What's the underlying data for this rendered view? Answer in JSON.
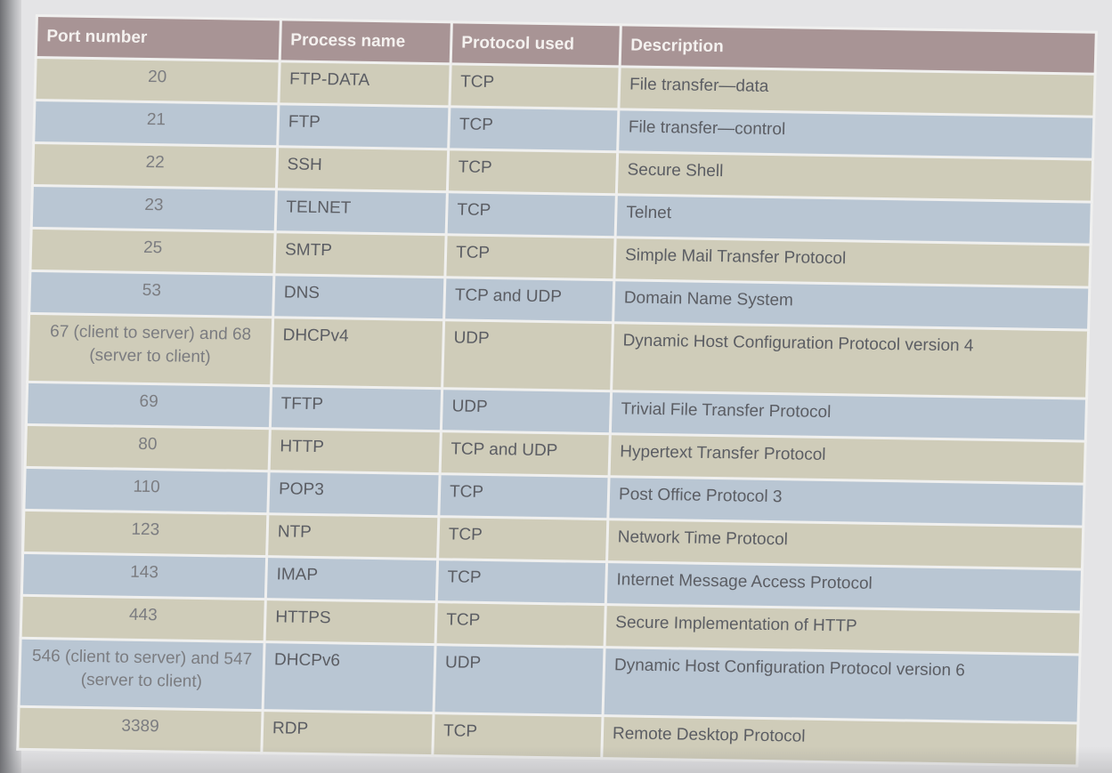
{
  "table": {
    "headers": [
      "Port number",
      "Process name",
      "Protocol used",
      "Description"
    ],
    "rows": [
      {
        "port": "20",
        "process": "FTP-DATA",
        "protocol": "TCP",
        "description": "File transfer—data"
      },
      {
        "port": "21",
        "process": "FTP",
        "protocol": "TCP",
        "description": "File transfer—control"
      },
      {
        "port": "22",
        "process": "SSH",
        "protocol": "TCP",
        "description": "Secure Shell"
      },
      {
        "port": "23",
        "process": "TELNET",
        "protocol": "TCP",
        "description": "Telnet"
      },
      {
        "port": "25",
        "process": "SMTP",
        "protocol": "TCP",
        "description": "Simple Mail Transfer Protocol"
      },
      {
        "port": "53",
        "process": "DNS",
        "protocol": "TCP and UDP",
        "description": "Domain Name System"
      },
      {
        "port": "67 (client to server) and 68 (server to client)",
        "process": "DHCPv4",
        "protocol": "UDP",
        "description": "Dynamic Host Configuration Protocol version 4"
      },
      {
        "port": "69",
        "process": "TFTP",
        "protocol": "UDP",
        "description": "Trivial File Transfer Protocol"
      },
      {
        "port": "80",
        "process": "HTTP",
        "protocol": "TCP and UDP",
        "description": "Hypertext Transfer Protocol"
      },
      {
        "port": "110",
        "process": "POP3",
        "protocol": "TCP",
        "description": "Post Office Protocol 3"
      },
      {
        "port": "123",
        "process": "NTP",
        "protocol": "TCP",
        "description": "Network Time Protocol"
      },
      {
        "port": "143",
        "process": "IMAP",
        "protocol": "TCP",
        "description": "Internet Message Access Protocol"
      },
      {
        "port": "443",
        "process": "HTTPS",
        "protocol": "TCP",
        "description": "Secure Implementation of HTTP"
      },
      {
        "port": "546 (client to server) and 547 (server to client)",
        "process": "DHCPv6",
        "protocol": "UDP",
        "description": "Dynamic Host Configuration Protocol version 6"
      },
      {
        "port": "3389",
        "process": "RDP",
        "protocol": "TCP",
        "description": "Remote Desktop Protocol"
      }
    ]
  },
  "colors": {
    "header_bg": "#a89495",
    "row_tan": "#cfccb9",
    "row_blue": "#b9c6d3",
    "grid_line": "#f0f0ef"
  }
}
